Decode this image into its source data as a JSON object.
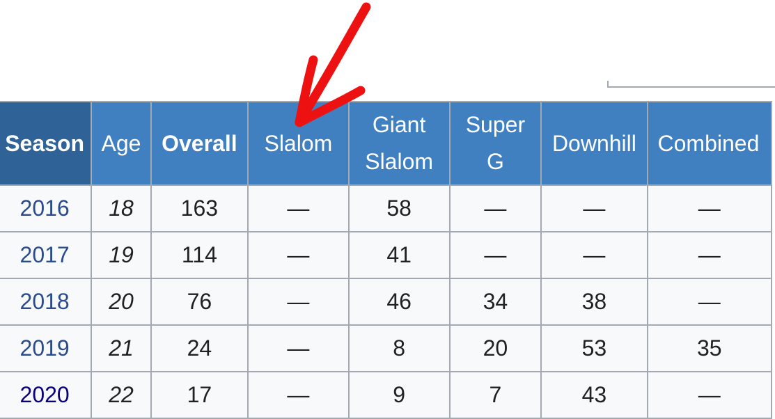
{
  "table": {
    "headers": [
      {
        "label": "Season",
        "line1": "Season",
        "line2": ""
      },
      {
        "label": "Age",
        "line1": "Age",
        "line2": ""
      },
      {
        "label": "Overall",
        "line1": "Overall",
        "line2": ""
      },
      {
        "label": "Slalom",
        "line1": "Slalom",
        "line2": ""
      },
      {
        "label": "Giant Slalom",
        "line1": "Giant",
        "line2": "Slalom"
      },
      {
        "label": "Super G",
        "line1": "Super",
        "line2": "G"
      },
      {
        "label": "Downhill",
        "line1": "Downhill",
        "line2": ""
      },
      {
        "label": "Combined",
        "line1": "Combined",
        "line2": ""
      }
    ],
    "rows": [
      [
        "2016",
        "18",
        "163",
        "—",
        "58",
        "—",
        "—",
        "—"
      ],
      [
        "2017",
        "19",
        "114",
        "—",
        "41",
        "—",
        "—",
        "—"
      ],
      [
        "2018",
        "20",
        "76",
        "—",
        "46",
        "34",
        "38",
        "—"
      ],
      [
        "2019",
        "21",
        "24",
        "—",
        "8",
        "20",
        "53",
        "35"
      ],
      [
        "2020",
        "22",
        "17",
        "—",
        "9",
        "7",
        "43",
        "—"
      ]
    ]
  },
  "annotation": {
    "icon": "red-arrow-icon",
    "color": "#ee1111"
  }
}
